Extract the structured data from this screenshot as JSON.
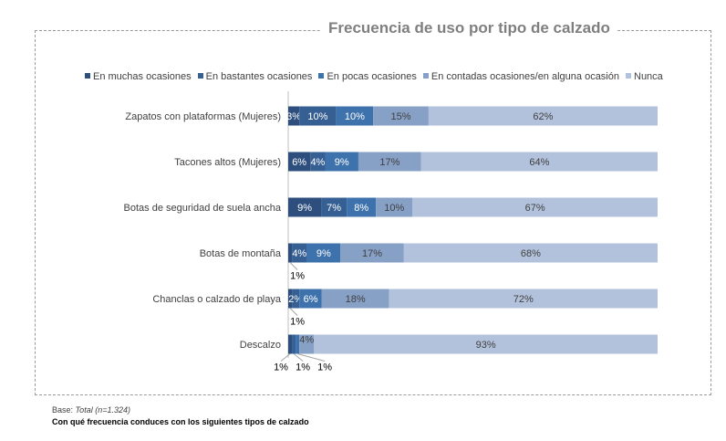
{
  "chart_data": {
    "type": "bar",
    "orientation": "horizontal-stacked",
    "title": "Frecuencia de uso por tipo de calzado",
    "categories": [
      "Zapatos con plataformas (Mujeres)",
      "Tacones altos (Mujeres)",
      "Botas de seguridad de suela ancha",
      "Botas de montaña",
      "Chanclas o calzado de playa",
      "Descalzo"
    ],
    "series": [
      {
        "name": "En muchas ocasiones",
        "color": "#2e4f7d",
        "values": [
          3,
          6,
          9,
          1,
          1,
          1
        ]
      },
      {
        "name": "En bastantes ocasiones",
        "color": "#365f93",
        "values": [
          10,
          4,
          7,
          4,
          2,
          1
        ]
      },
      {
        "name": "En pocas ocasiones",
        "color": "#3e72ad",
        "values": [
          10,
          9,
          8,
          9,
          6,
          1
        ]
      },
      {
        "name": "En contadas ocasiones/en alguna ocasión",
        "color": "#87a0c6",
        "values": [
          15,
          17,
          10,
          17,
          18,
          4
        ]
      },
      {
        "name": "Nunca",
        "color": "#b3c2dc",
        "values": [
          62,
          64,
          67,
          68,
          72,
          93
        ]
      }
    ],
    "legend_position": "top",
    "value_suffix": "%"
  },
  "footer": {
    "base_label": "Base: ",
    "base_value": "Total (n=1.324)",
    "question": "Con qué frecuencia conduces con los siguientes tipos de calzado"
  }
}
